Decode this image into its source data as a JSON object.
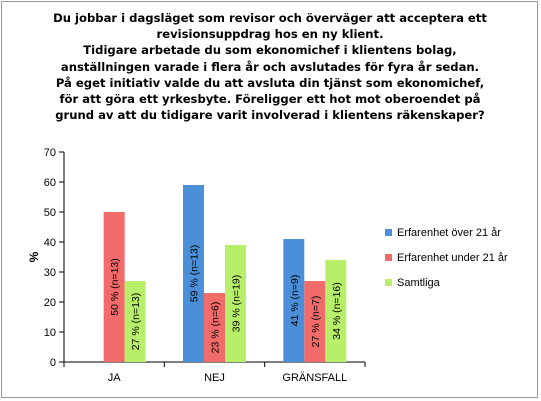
{
  "chart_data": {
    "type": "bar",
    "title": [
      "Du jobbar i dagsläget som revisor och överväger att acceptera ett",
      "revisionsuppdrag hos en ny klient.",
      "Tidigare arbetade du som ekonomichef i klientens bolag,",
      "anställningen varade i flera år och avslutades för fyra år sedan.",
      "På eget initiativ valde du att avsluta din tjänst som ekonomichef,",
      "för att göra ett yrkesbyte. Föreligger ett hot mot oberoendet på",
      "grund av att du tidigare varit involverad i klientens räkenskaper?"
    ],
    "ylabel": "%",
    "ylim": [
      0,
      70
    ],
    "yticks": [
      0,
      10,
      20,
      30,
      40,
      50,
      60,
      70
    ],
    "grid": false,
    "legend_position": "right",
    "categories": [
      "JA",
      "NEJ",
      "GRÄNSFALL"
    ],
    "series": [
      {
        "name": "Erfarenhet över 21 år",
        "color": "#4a8fd8",
        "values": [
          0,
          59,
          41
        ],
        "labels": [
          "",
          "59 % (n=13)",
          "41 % (n=9)"
        ]
      },
      {
        "name": "Erfarenhet under 21 år",
        "color": "#f26b6b",
        "values": [
          50,
          23,
          27
        ],
        "labels": [
          "50 % (n=13)",
          "23 % (n=6)",
          "27 % (n=7)"
        ]
      },
      {
        "name": "Samtliga",
        "color": "#b7ef6a",
        "values": [
          27,
          39,
          34
        ],
        "labels": [
          "27 % (n=13)",
          "39 % (n=19)",
          "34 % (n=16)"
        ]
      }
    ]
  }
}
